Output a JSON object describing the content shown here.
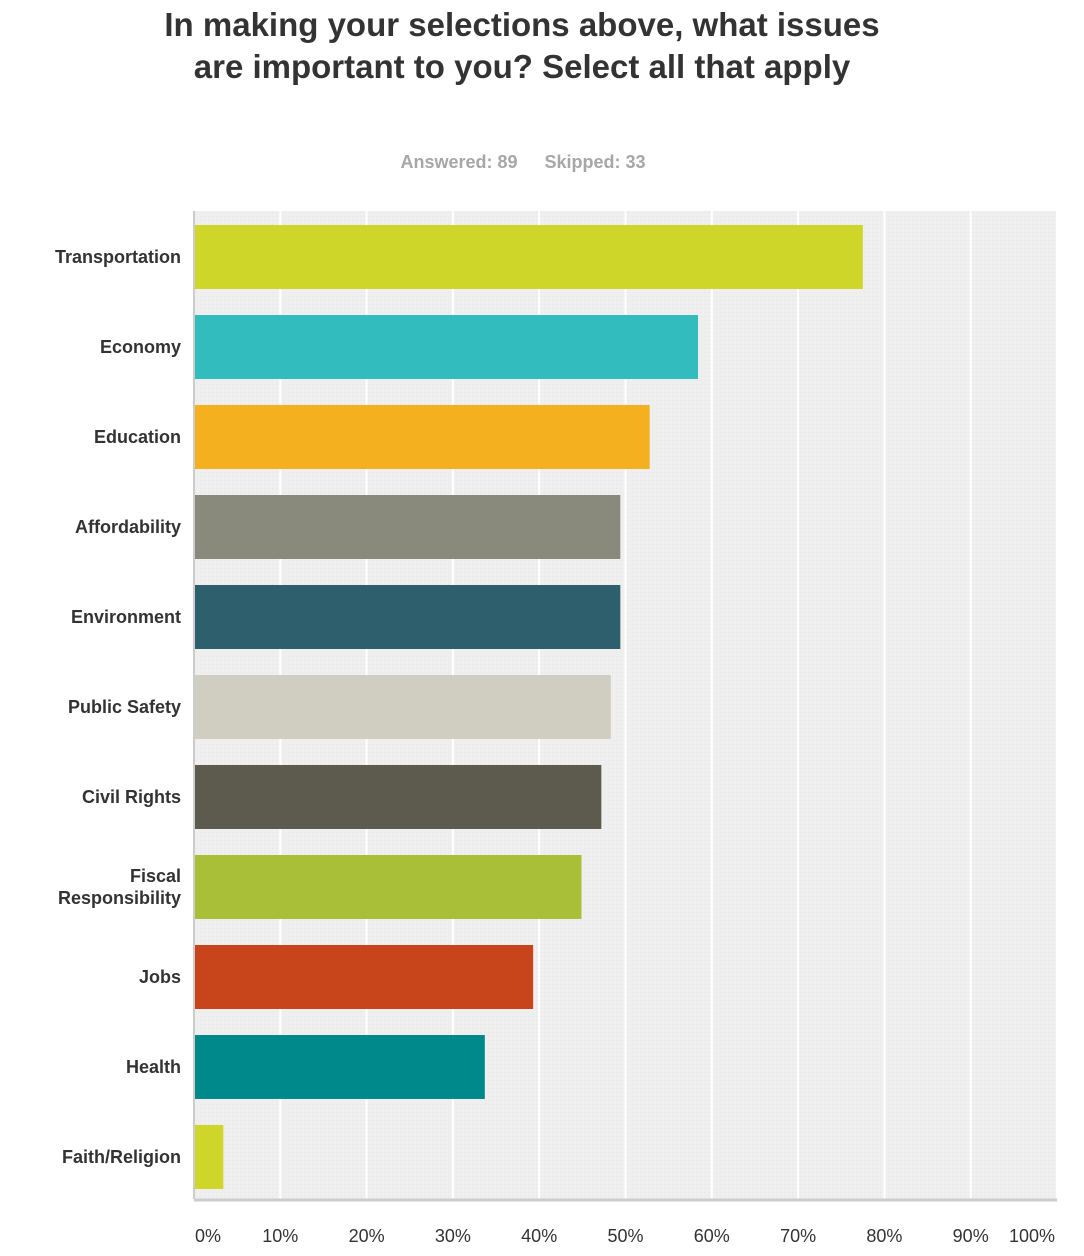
{
  "chart_data": {
    "type": "bar",
    "orientation": "horizontal",
    "title": "In making your selections above, what issues are important to you? Select all that apply",
    "answered": "Answered: 89",
    "skipped": "Skipped: 33",
    "categories": [
      "Transportation",
      "Economy",
      "Education",
      "Affordability",
      "Environment",
      "Public Safety",
      "Civil Rights",
      "Fiscal Responsibility",
      "Jobs",
      "Health",
      "Faith/Religion"
    ],
    "values": [
      77.5,
      58.4,
      52.8,
      49.4,
      49.4,
      48.3,
      47.2,
      44.9,
      39.3,
      33.7,
      3.4
    ],
    "unit": "%",
    "colors": [
      "#cfd62a",
      "#33bcbd",
      "#f5b01f",
      "#898a7c",
      "#2e5f6c",
      "#cfcec1",
      "#5c5b4d",
      "#a9bf38",
      "#c8441b",
      "#00898a",
      "#cfd62a"
    ],
    "xlim": [
      0,
      100
    ],
    "x_ticks": [
      "0%",
      "10%",
      "20%",
      "30%",
      "40%",
      "50%",
      "60%",
      "70%",
      "80%",
      "90%",
      "100%"
    ],
    "grid": true,
    "legend": "none"
  }
}
